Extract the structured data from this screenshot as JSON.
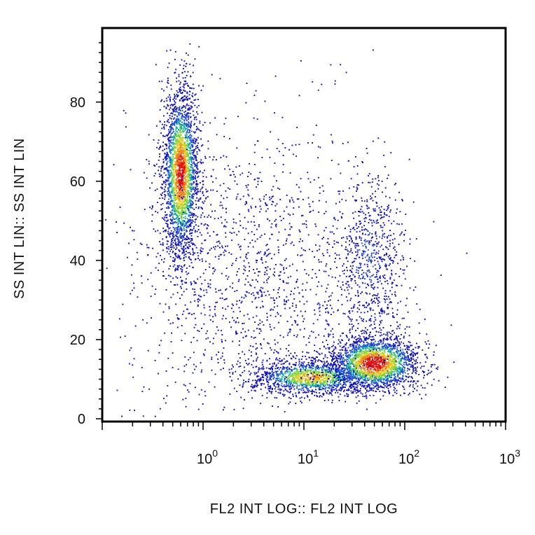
{
  "chart_data": {
    "type": "scatter",
    "subtype": "flow-cytometry density dot plot",
    "xlabel": "FL2 INT LOG:: FL2 INT LOG",
    "ylabel": "SS INT LIN:: SS INT LIN",
    "x_scale": "log",
    "xlim": [
      0.1,
      1000
    ],
    "ylim": [
      0,
      98
    ],
    "x_ticks": [
      {
        "base": "10",
        "exp": "0",
        "value": 1
      },
      {
        "base": "10",
        "exp": "1",
        "value": 10
      },
      {
        "base": "10",
        "exp": "2",
        "value": 100
      },
      {
        "base": "10",
        "exp": "3",
        "value": 1000
      }
    ],
    "y_ticks": [
      {
        "label": "0",
        "value": 0
      },
      {
        "label": "20",
        "value": 20
      },
      {
        "label": "40",
        "value": 40
      },
      {
        "label": "60",
        "value": 60
      },
      {
        "label": "80",
        "value": 80
      }
    ],
    "grid": false,
    "legend": "none",
    "density_colors": [
      "#1010c0",
      "#1f4fd8",
      "#12b0a0",
      "#7fd23a",
      "#e8d020",
      "#f08018",
      "#e01010"
    ],
    "populations": [
      {
        "name": "cluster-1",
        "x_center": 0.6,
        "y_center": 62,
        "x_spread_log": 0.09,
        "y_spread": 11
      },
      {
        "name": "cluster-2",
        "x_center": 12,
        "y_center": 10.5,
        "x_spread_log": 0.3,
        "y_spread": 2.2
      },
      {
        "name": "cluster-3",
        "x_center": 50,
        "y_center": 14,
        "x_spread_log": 0.22,
        "y_spread": 3.5
      },
      {
        "name": "cluster-4",
        "x_center": 45,
        "y_center": 40,
        "x_spread_log": 0.18,
        "y_spread": 11
      },
      {
        "name": "scatter",
        "x_center": 3,
        "y_center": 35,
        "x_spread_log": 0.6,
        "y_spread": 20
      }
    ]
  }
}
